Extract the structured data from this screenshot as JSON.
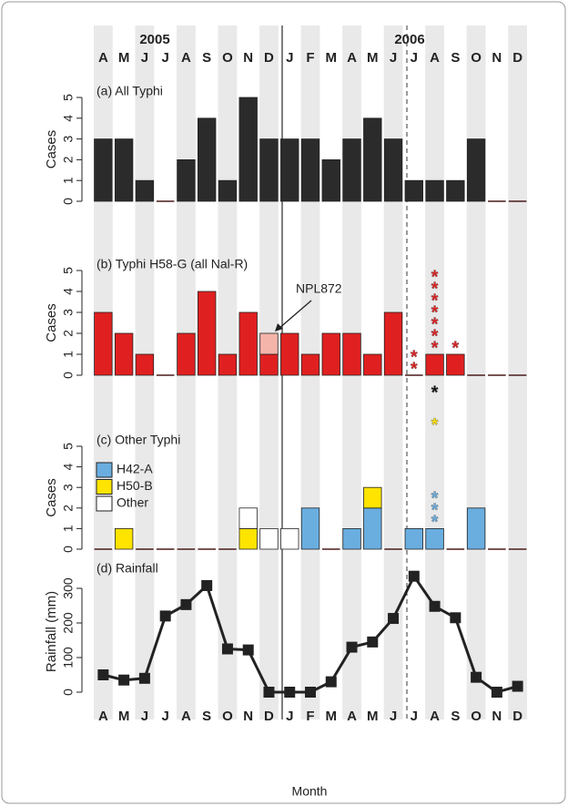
{
  "chart_data": [
    {
      "type": "bar",
      "title": "(a) All Typhi",
      "ylabel": "Cases",
      "year_labels": [
        "2005",
        "2006"
      ],
      "categories": [
        "A",
        "M",
        "J",
        "J",
        "A",
        "S",
        "O",
        "N",
        "D",
        "J",
        "F",
        "M",
        "A",
        "M",
        "J",
        "J",
        "A",
        "S",
        "O",
        "N",
        "D"
      ],
      "values": [
        3,
        3,
        1,
        0,
        2,
        4,
        1,
        5,
        3,
        3,
        3,
        2,
        3,
        4,
        3,
        1,
        1,
        1,
        3,
        0,
        0
      ],
      "color": "#2b2b2b",
      "ylim": [
        0,
        5
      ],
      "yticks": [
        0,
        1,
        2,
        3,
        4,
        5
      ]
    },
    {
      "type": "bar",
      "title": "(b) Typhi H58-G (all Nal-R)",
      "ylabel": "Cases",
      "annotation": "NPL872",
      "series": [
        {
          "color": "#e02020",
          "values": [
            3,
            2,
            1,
            0,
            2,
            4,
            1,
            3,
            1,
            2,
            1,
            2,
            2,
            1,
            3,
            0,
            1,
            1,
            0,
            0,
            0
          ]
        },
        {
          "color": "#f4b4aa",
          "values": [
            0,
            0,
            0,
            0,
            0,
            0,
            0,
            0,
            1,
            0,
            0,
            0,
            0,
            0,
            0,
            0,
            0,
            0,
            0,
            0,
            0
          ]
        }
      ],
      "asterisk_symbol": "*",
      "asterisks": [
        {
          "category": 15,
          "color": "#e02020",
          "count": 2
        },
        {
          "category": 16,
          "color": "#e02020",
          "count": 7
        },
        {
          "category": 17,
          "color": "#e02020",
          "count": 1
        }
      ],
      "ylim": [
        0,
        5
      ],
      "yticks": [
        0,
        1,
        2,
        3,
        4,
        5
      ]
    },
    {
      "type": "bar",
      "title": "(c) Other Typhi",
      "ylabel": "Cases",
      "series": [
        {
          "name": "H42-A",
          "color": "#6aaee0",
          "values": [
            0,
            0,
            0,
            0,
            0,
            0,
            0,
            0,
            0,
            0,
            2,
            0,
            1,
            2,
            0,
            1,
            1,
            0,
            2,
            0,
            0
          ]
        },
        {
          "name": "H50-B",
          "color": "#ffe400",
          "values": [
            0,
            1,
            0,
            0,
            0,
            0,
            0,
            1,
            0,
            0,
            0,
            0,
            0,
            1,
            0,
            0,
            0,
            0,
            0,
            0,
            0
          ]
        },
        {
          "name": "Other",
          "color": "#ffffff",
          "values": [
            0,
            0,
            0,
            0,
            0,
            0,
            0,
            1,
            1,
            1,
            0,
            0,
            0,
            0,
            0,
            0,
            0,
            0,
            0,
            0,
            0
          ]
        }
      ],
      "asterisk_symbol": "*",
      "asterisks": [
        {
          "category": 16,
          "color": "#6aaee0",
          "count": 3
        },
        {
          "category": 16,
          "color": "#ffe400",
          "count": 1
        },
        {
          "category": 16,
          "color": "#111111",
          "count": 1
        }
      ],
      "ylim": [
        0,
        5
      ],
      "yticks": [
        0,
        1,
        2,
        3,
        4,
        5
      ]
    },
    {
      "type": "line",
      "title": "(d) Rainfall",
      "ylabel": "Rainfall (mm)",
      "xlabel": "Month",
      "values": [
        50,
        35,
        40,
        220,
        253,
        308,
        125,
        122,
        0,
        0,
        0,
        30,
        130,
        145,
        213,
        335,
        248,
        215,
        43,
        0,
        17
      ],
      "color": "#222222",
      "ylim": [
        0,
        350
      ],
      "yticks": [
        0,
        100,
        200,
        300
      ]
    }
  ]
}
